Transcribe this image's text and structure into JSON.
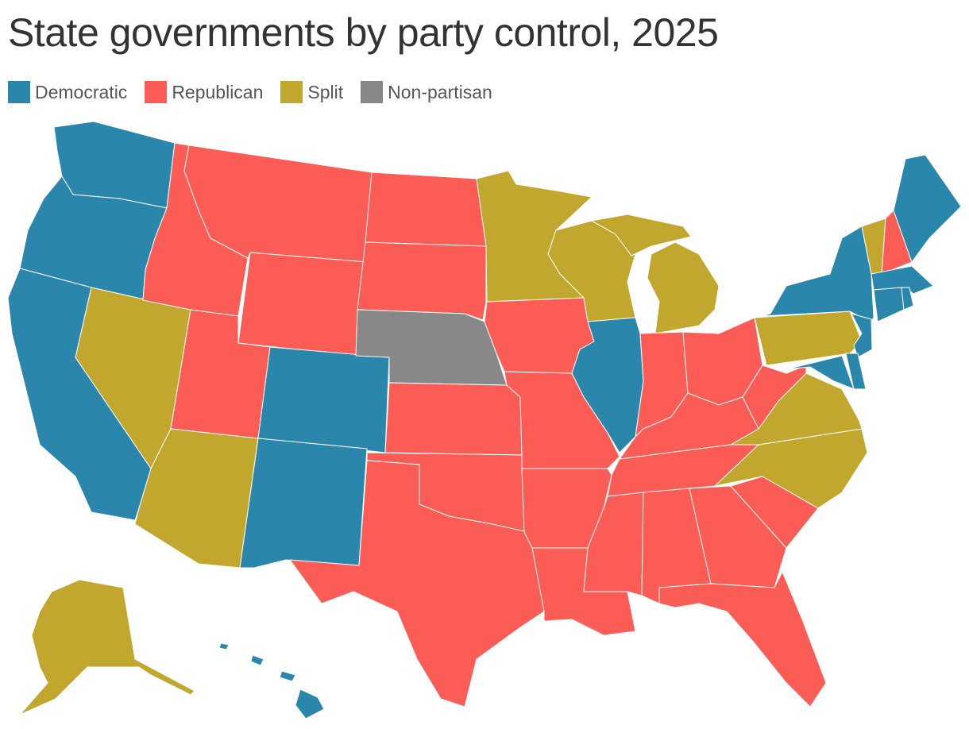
{
  "title": "State governments by party control, 2025",
  "legend": [
    {
      "label": "Democratic",
      "color": "#2b86ab"
    },
    {
      "label": "Republican",
      "color": "#fb5c55"
    },
    {
      "label": "Split",
      "color": "#c2a72f"
    },
    {
      "label": "Non-partisan",
      "color": "#888888"
    }
  ],
  "states": [
    0,
    0,
    0,
    2,
    1,
    1,
    1,
    1,
    0,
    2,
    0,
    1,
    1,
    3,
    1,
    1,
    1,
    2,
    1,
    1,
    2,
    0,
    2,
    1,
    1,
    1,
    1,
    1,
    1,
    1,
    1,
    1,
    1,
    1,
    2,
    2,
    1,
    2,
    0,
    0,
    0,
    0,
    2,
    1,
    0,
    0,
    0,
    0,
    2,
    0
  ]
}
